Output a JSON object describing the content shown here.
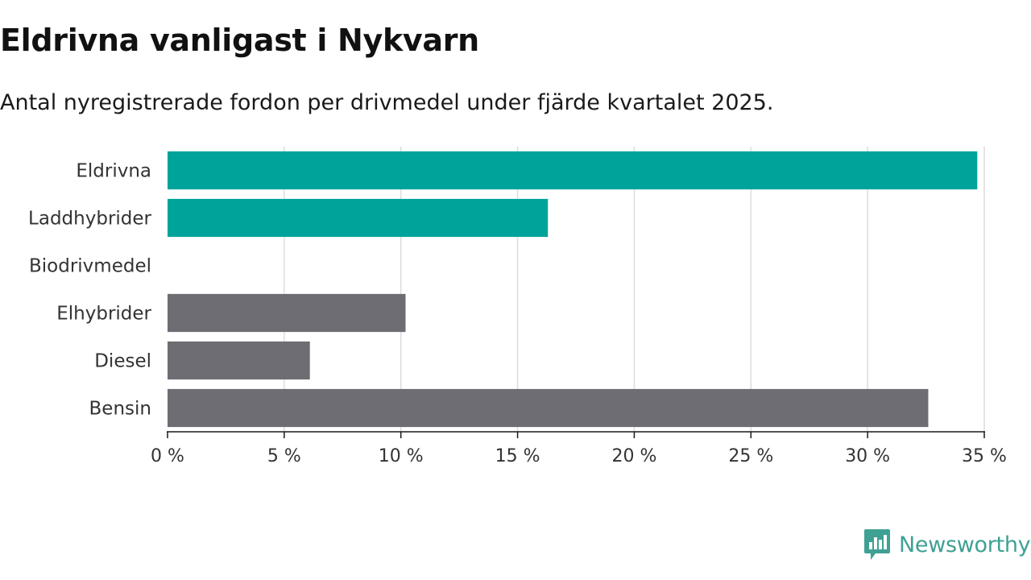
{
  "header": {
    "title": "Eldrivna vanligast i Nykvarn",
    "subtitle": "Antal nyregistrerade fordon per drivmedel under fjärde kvartalet 2025."
  },
  "brand": {
    "name": "Newsworthy",
    "icon": "newsworthy-logo-icon",
    "color": "#3fa094"
  },
  "chart_data": {
    "type": "bar",
    "orientation": "horizontal",
    "title": "Eldrivna vanligast i Nykvarn",
    "subtitle": "Antal nyregistrerade fordon per drivmedel under fjärde kvartalet 2025.",
    "xlabel": "",
    "ylabel": "",
    "categories": [
      "Eldrivna",
      "Laddhybrider",
      "Biodrivmedel",
      "Elhybrider",
      "Diesel",
      "Bensin"
    ],
    "values": [
      34.7,
      16.3,
      0,
      10.2,
      6.1,
      32.6
    ],
    "highlight": [
      true,
      true,
      false,
      false,
      false,
      false
    ],
    "colors": {
      "highlight": "#00a39a",
      "default": "#6e6d73"
    },
    "xlim": [
      0,
      35
    ],
    "xticks": [
      0,
      5,
      10,
      15,
      20,
      25,
      30,
      35
    ],
    "xtick_labels": [
      "0 %",
      "5 %",
      "10 %",
      "15 %",
      "20 %",
      "25 %",
      "30 %",
      "35 %"
    ],
    "grid": true
  }
}
